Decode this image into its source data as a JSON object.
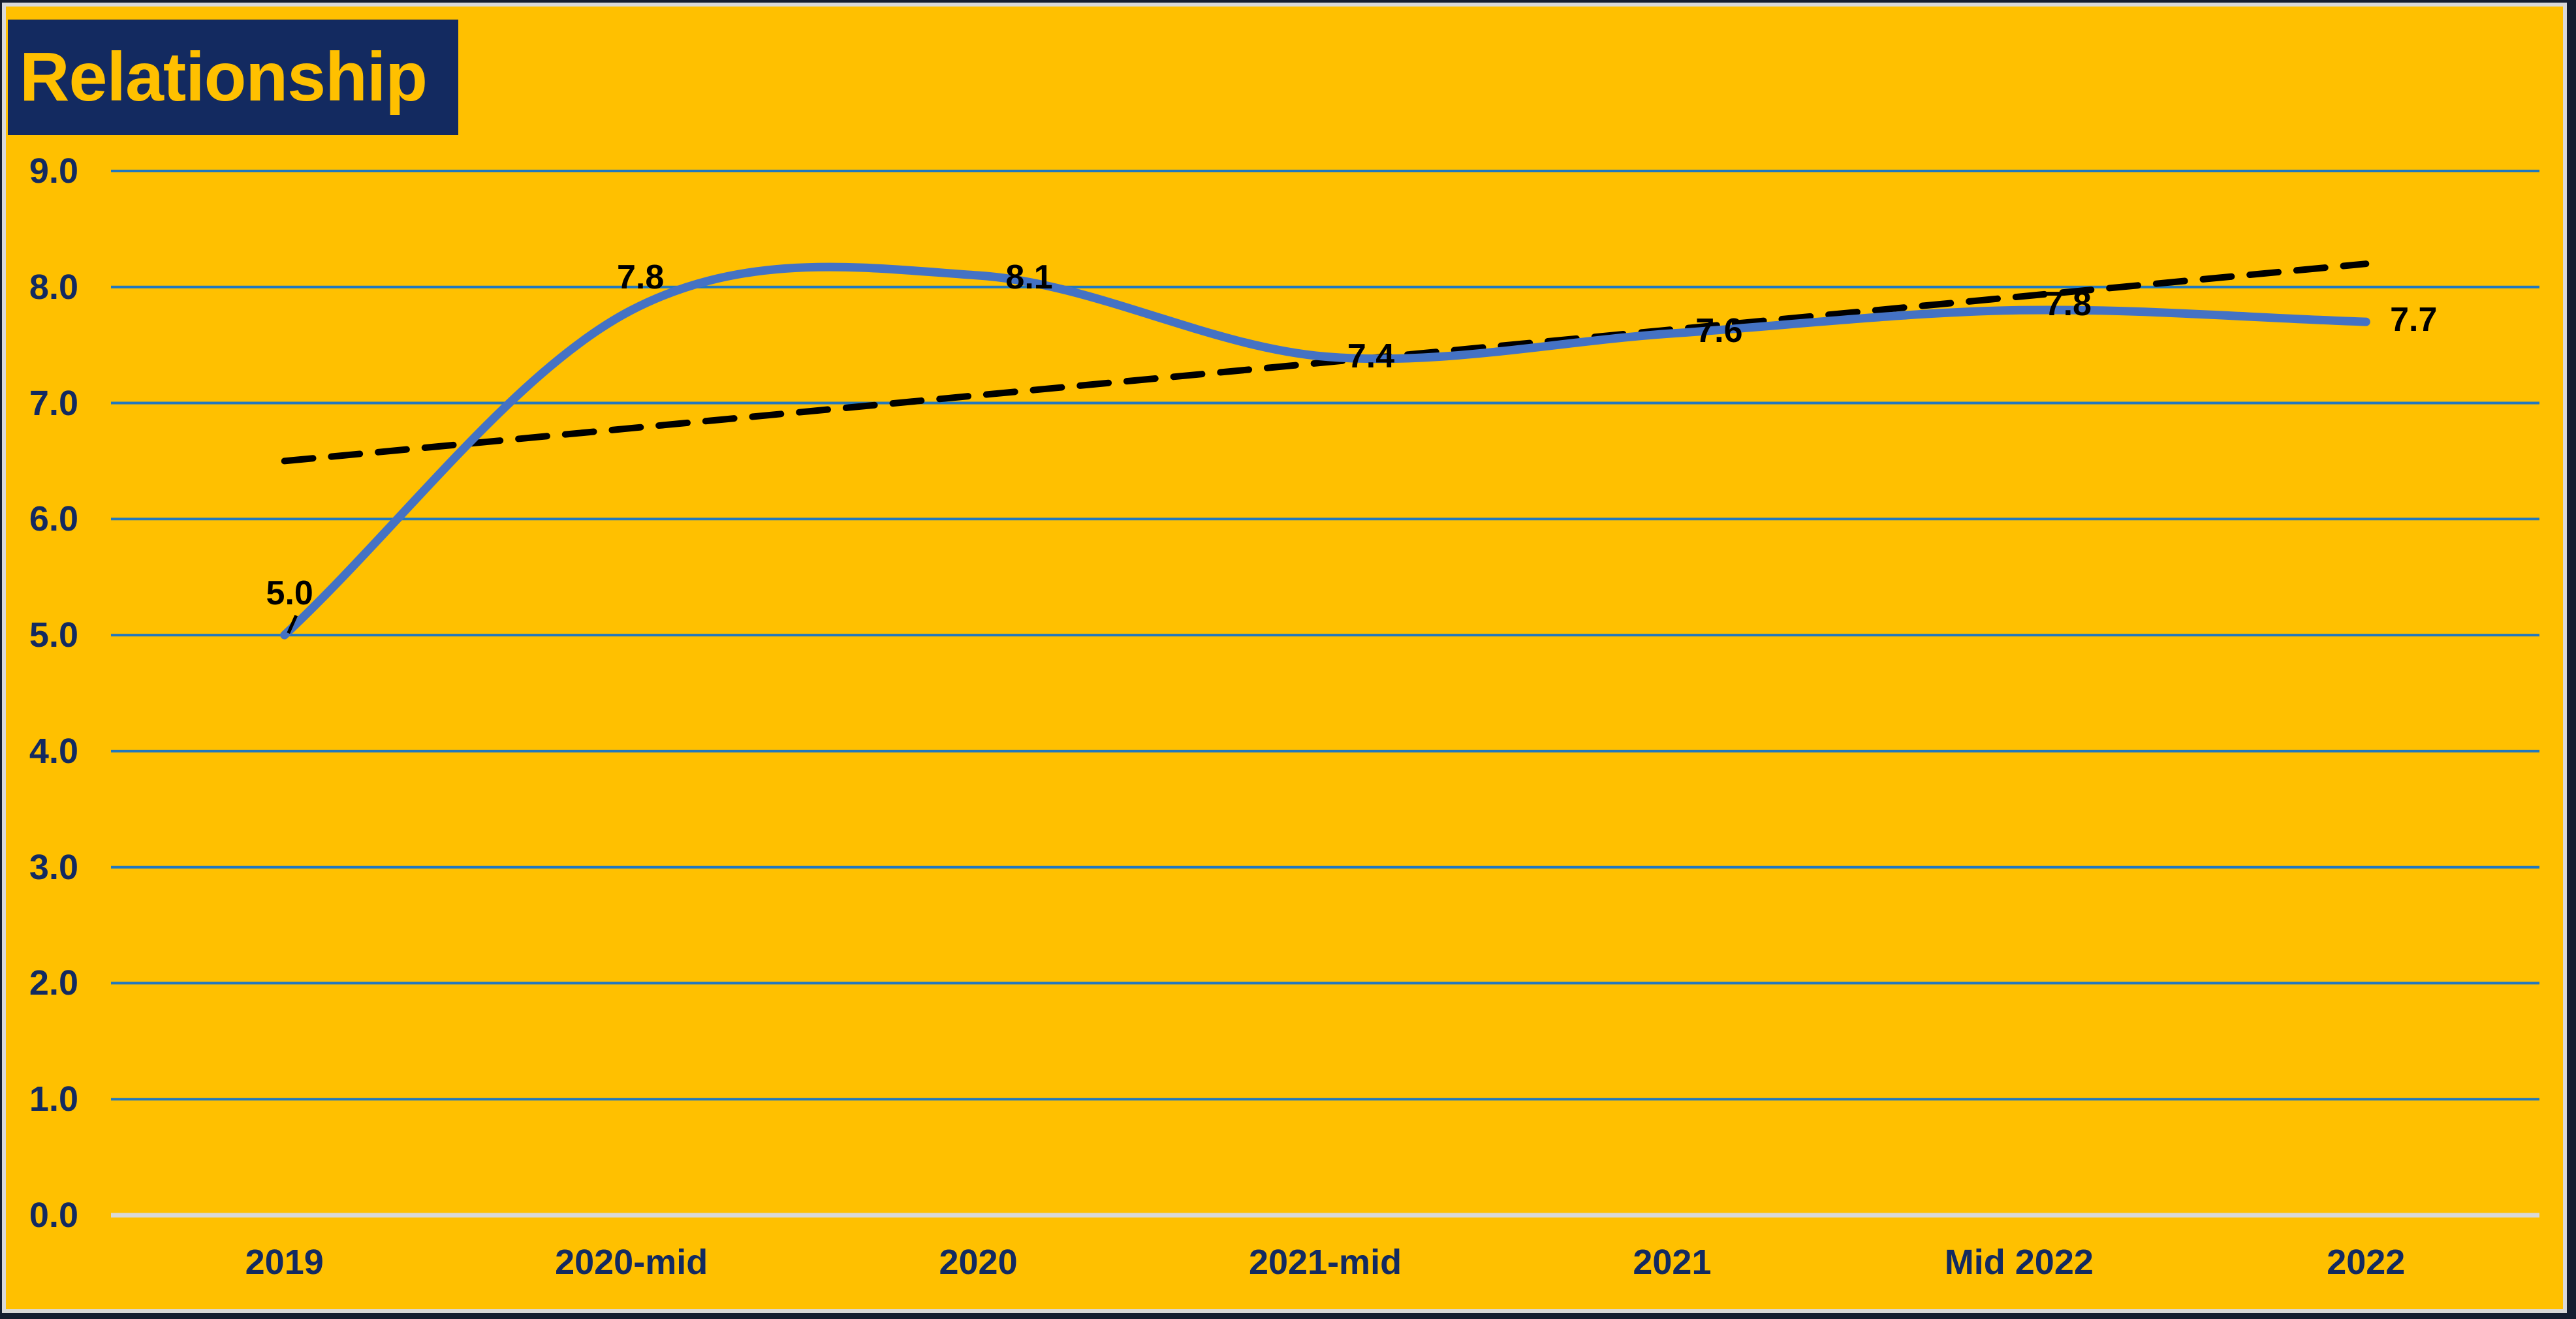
{
  "title": {
    "text": "Relationship"
  },
  "colors": {
    "background": "#FFC000",
    "outer_border": "#151E30",
    "frame_border": "#D9D9D9",
    "title_box_fill": "#132A60",
    "title_text": "#FFC000",
    "axis_label": "#132A60",
    "gridline": "#2278BE",
    "axis_line": "#D9D9D9",
    "series_line": "#4472C4",
    "trendline": "#000000",
    "data_label": "#000000"
  },
  "chart_data": {
    "type": "line",
    "title": "Relationship",
    "categories": [
      "2019",
      "2020-mid",
      "2020",
      "2021-mid",
      "2021",
      "Mid 2022",
      "2022"
    ],
    "series": [
      {
        "name": "Relationship",
        "values": [
          5.0,
          7.8,
          8.1,
          7.4,
          7.6,
          7.8,
          7.7
        ],
        "color": "#4472C4",
        "style": "smooth"
      }
    ],
    "data_labels": [
      "5.0",
      "7.8",
      "8.1",
      "7.4",
      "7.6",
      "7.8",
      "7.7"
    ],
    "trendline": {
      "type": "linear",
      "style": "dashed",
      "color": "#000000",
      "start_value": 6.5,
      "end_value": 8.2
    },
    "ylim": [
      0.0,
      9.0
    ],
    "ytick_step": 1.0,
    "ytick_labels": [
      "0.0",
      "1.0",
      "2.0",
      "3.0",
      "4.0",
      "5.0",
      "6.0",
      "7.0",
      "8.0",
      "9.0"
    ],
    "xlabel": "",
    "ylabel": "",
    "grid": true,
    "legend_position": "none"
  }
}
